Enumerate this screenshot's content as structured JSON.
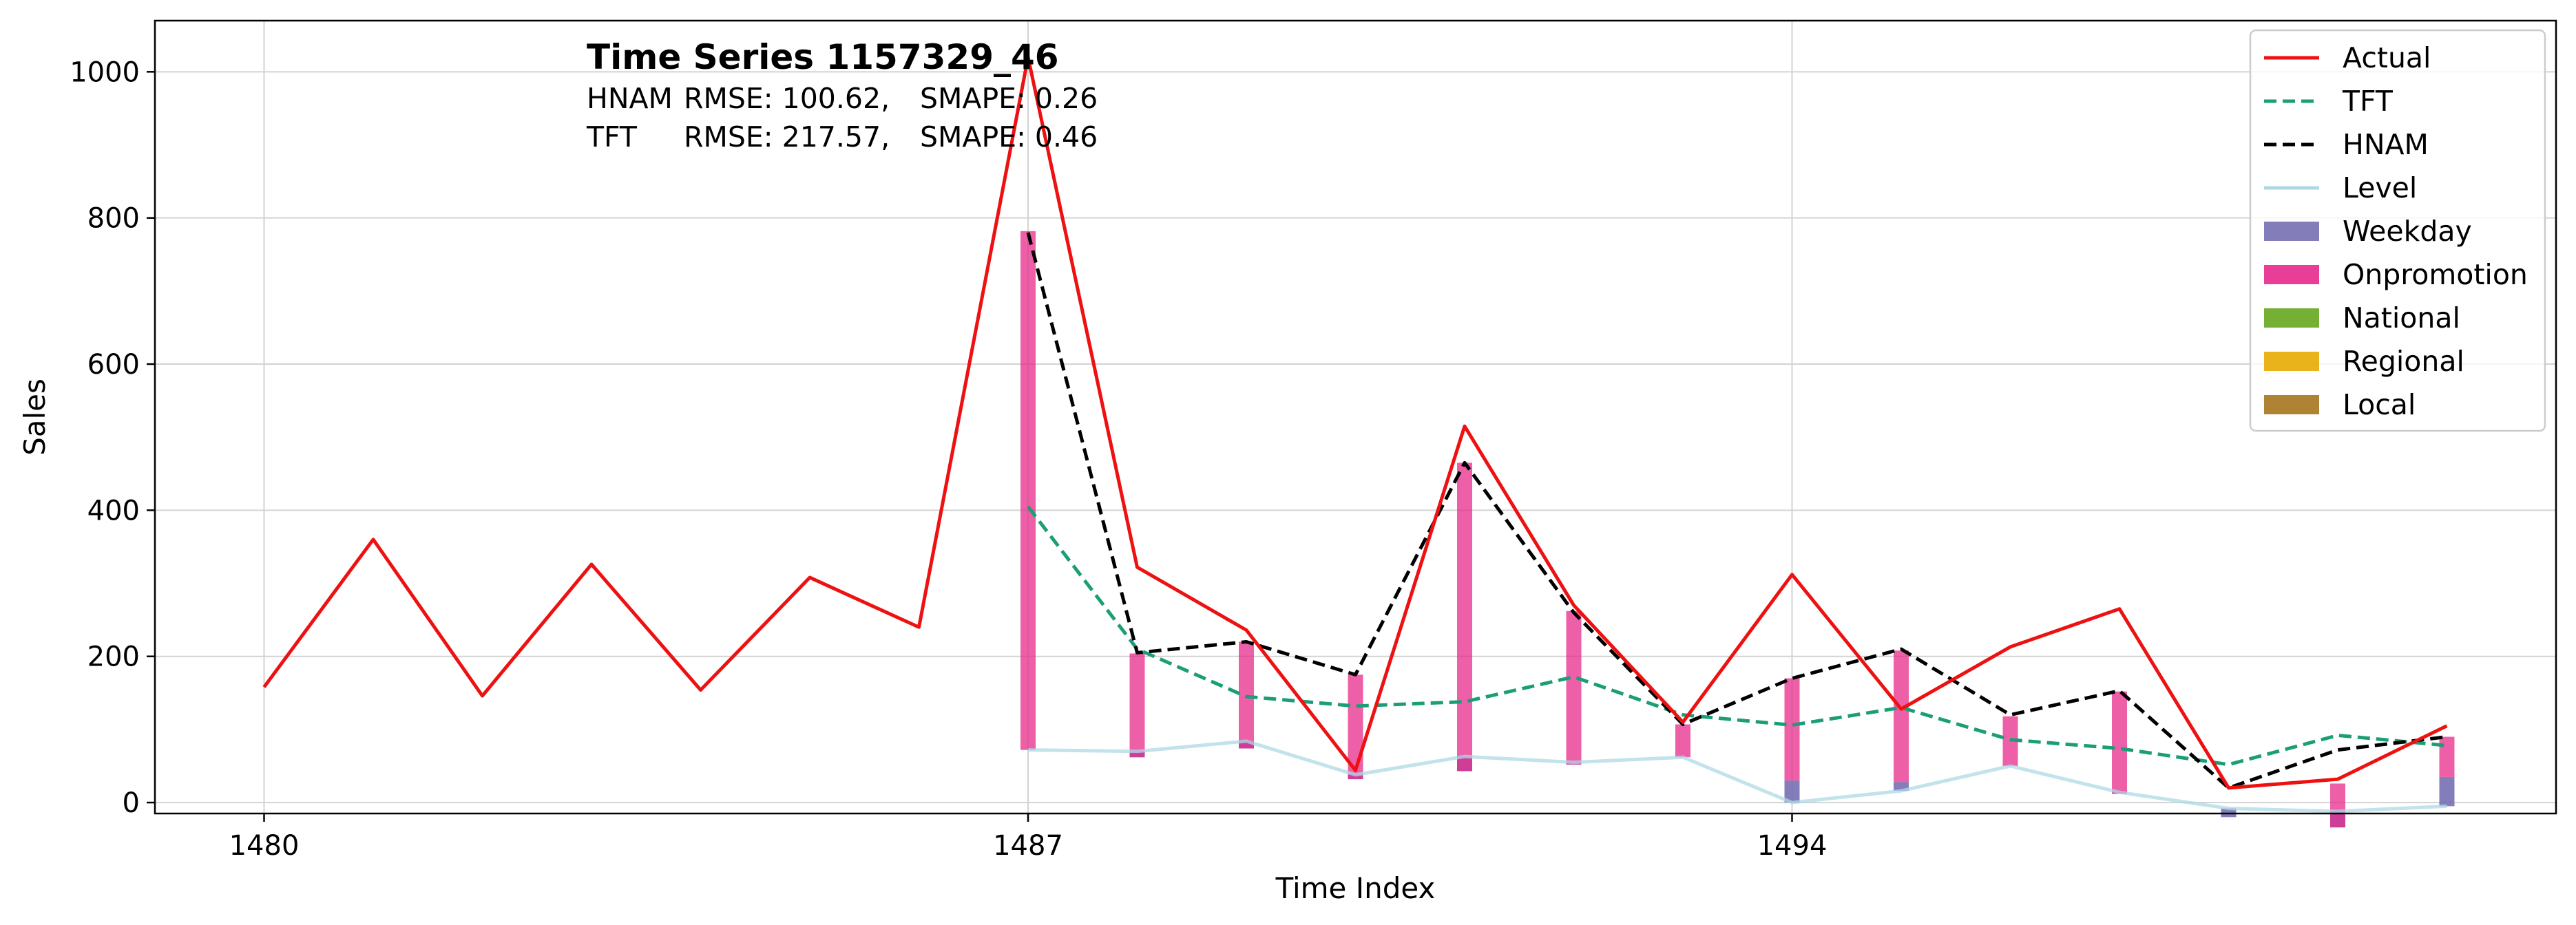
{
  "chart_data": {
    "type": "line",
    "title": "Time Series 1157329_46",
    "metrics": {
      "hnam_model": "HNAM",
      "hnam_rmse": "RMSE: 100.62,",
      "hnam_smape": "SMAPE: 0.26",
      "tft_model": "TFT",
      "tft_rmse": "RMSE: 217.57,",
      "tft_smape": "SMAPE: 0.46"
    },
    "xlabel": "Time Index",
    "ylabel": "Sales",
    "xlim": [
      1479,
      1501
    ],
    "ylim": [
      -15,
      1070
    ],
    "x_ticks": [
      1480,
      1487,
      1494
    ],
    "y_ticks": [
      0,
      200,
      400,
      600,
      800,
      1000
    ],
    "grid": true,
    "legend_position": "top-right",
    "colors": {
      "actual": "#ee1111",
      "tft": "#1b9e77",
      "hnam": "#000000",
      "level": "#add8e6",
      "weekday": "#7570b3",
      "onpromotion": "#e7298a",
      "national": "#66a61e",
      "regional": "#e6ab02",
      "local": "#a6761d"
    },
    "series": [
      {
        "name": "Actual",
        "x": [
          1480,
          1481,
          1482,
          1483,
          1484,
          1485,
          1486,
          1487,
          1488,
          1489,
          1490,
          1491,
          1492,
          1493,
          1494,
          1495,
          1496,
          1497,
          1498,
          1499,
          1500
        ],
        "values": [
          158,
          360,
          146,
          326,
          154,
          308,
          240,
          1020,
          322,
          236,
          44,
          515,
          270,
          110,
          312,
          128,
          213,
          265,
          20,
          32,
          105
        ]
      },
      {
        "name": "TFT",
        "x": [
          1487,
          1488,
          1489,
          1490,
          1491,
          1492,
          1493,
          1494,
          1495,
          1496,
          1497,
          1498,
          1499,
          1500
        ],
        "values": [
          405,
          210,
          145,
          132,
          138,
          172,
          120,
          106,
          130,
          86,
          74,
          52,
          92,
          78
        ]
      },
      {
        "name": "HNAM",
        "x": [
          1487,
          1488,
          1489,
          1490,
          1491,
          1492,
          1493,
          1494,
          1495,
          1496,
          1497,
          1498,
          1499,
          1500
        ],
        "values": [
          780,
          205,
          220,
          175,
          465,
          260,
          107,
          170,
          210,
          120,
          153,
          20,
          72,
          90
        ]
      },
      {
        "name": "Level",
        "x": [
          1487,
          1488,
          1489,
          1490,
          1491,
          1492,
          1493,
          1494,
          1495,
          1496,
          1497,
          1498,
          1499,
          1500
        ],
        "values": [
          72,
          70,
          84,
          38,
          63,
          55,
          62,
          0,
          16,
          50,
          14,
          -8,
          -12,
          -5
        ]
      }
    ],
    "components": {
      "x": [
        1487,
        1488,
        1489,
        1490,
        1491,
        1492,
        1493,
        1494,
        1495,
        1496,
        1497,
        1498,
        1499,
        1500
      ],
      "weekday": [
        0,
        -8,
        -10,
        -6,
        -20,
        -3,
        0,
        30,
        12,
        0,
        -2,
        -12,
        -22,
        40
      ],
      "onpromotion": [
        710,
        142,
        146,
        143,
        422,
        210,
        45,
        140,
        180,
        68,
        140,
        0,
        60,
        55
      ]
    },
    "legend": [
      "Actual",
      "TFT",
      "HNAM",
      "Level",
      "Weekday",
      "Onpromotion",
      "National",
      "Regional",
      "Local"
    ]
  }
}
